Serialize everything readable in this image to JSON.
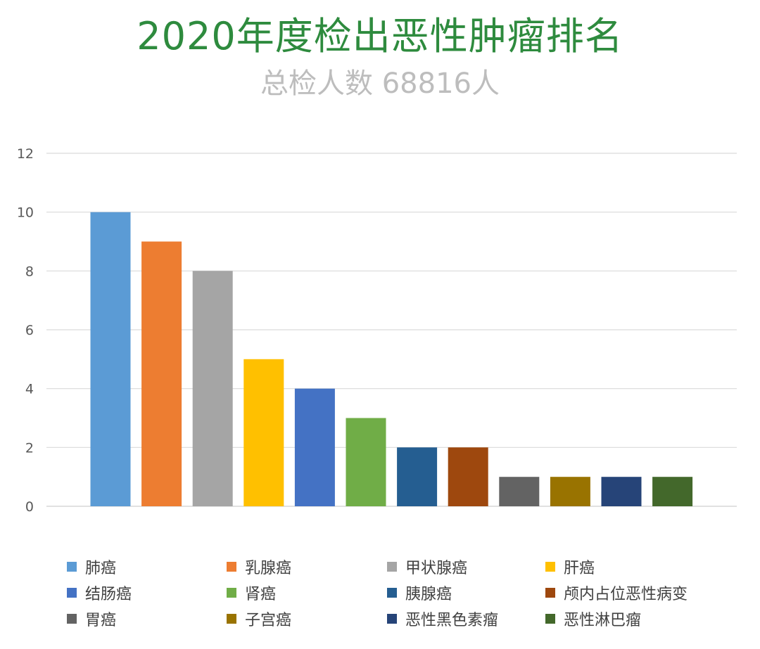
{
  "chart_data": {
    "type": "bar",
    "title": "2020年度检出恶性肿瘤排名",
    "subtitle": "总检人数 68816人",
    "xlabel": "",
    "ylabel": "",
    "ylim": [
      0,
      12
    ],
    "yticks": [
      0,
      2,
      4,
      6,
      8,
      10,
      12
    ],
    "grid": true,
    "legend_position": "bottom",
    "categories": [
      "肺癌",
      "乳腺癌",
      "甲状腺癌",
      "肝癌",
      "结肠癌",
      "肾癌",
      "胰腺癌",
      "颅内占位恶性病变",
      "胃癌",
      "子宫癌",
      "恶性黑色素瘤",
      "恶性淋巴瘤"
    ],
    "values": [
      10,
      9,
      8,
      5,
      4,
      3,
      2,
      2,
      1,
      1,
      1,
      1
    ],
    "colors": [
      "#5b9bd5",
      "#ed7d31",
      "#a5a5a5",
      "#ffc000",
      "#4472c4",
      "#70ad47",
      "#255e91",
      "#9e480e",
      "#636363",
      "#997300",
      "#264478",
      "#43682b"
    ]
  }
}
